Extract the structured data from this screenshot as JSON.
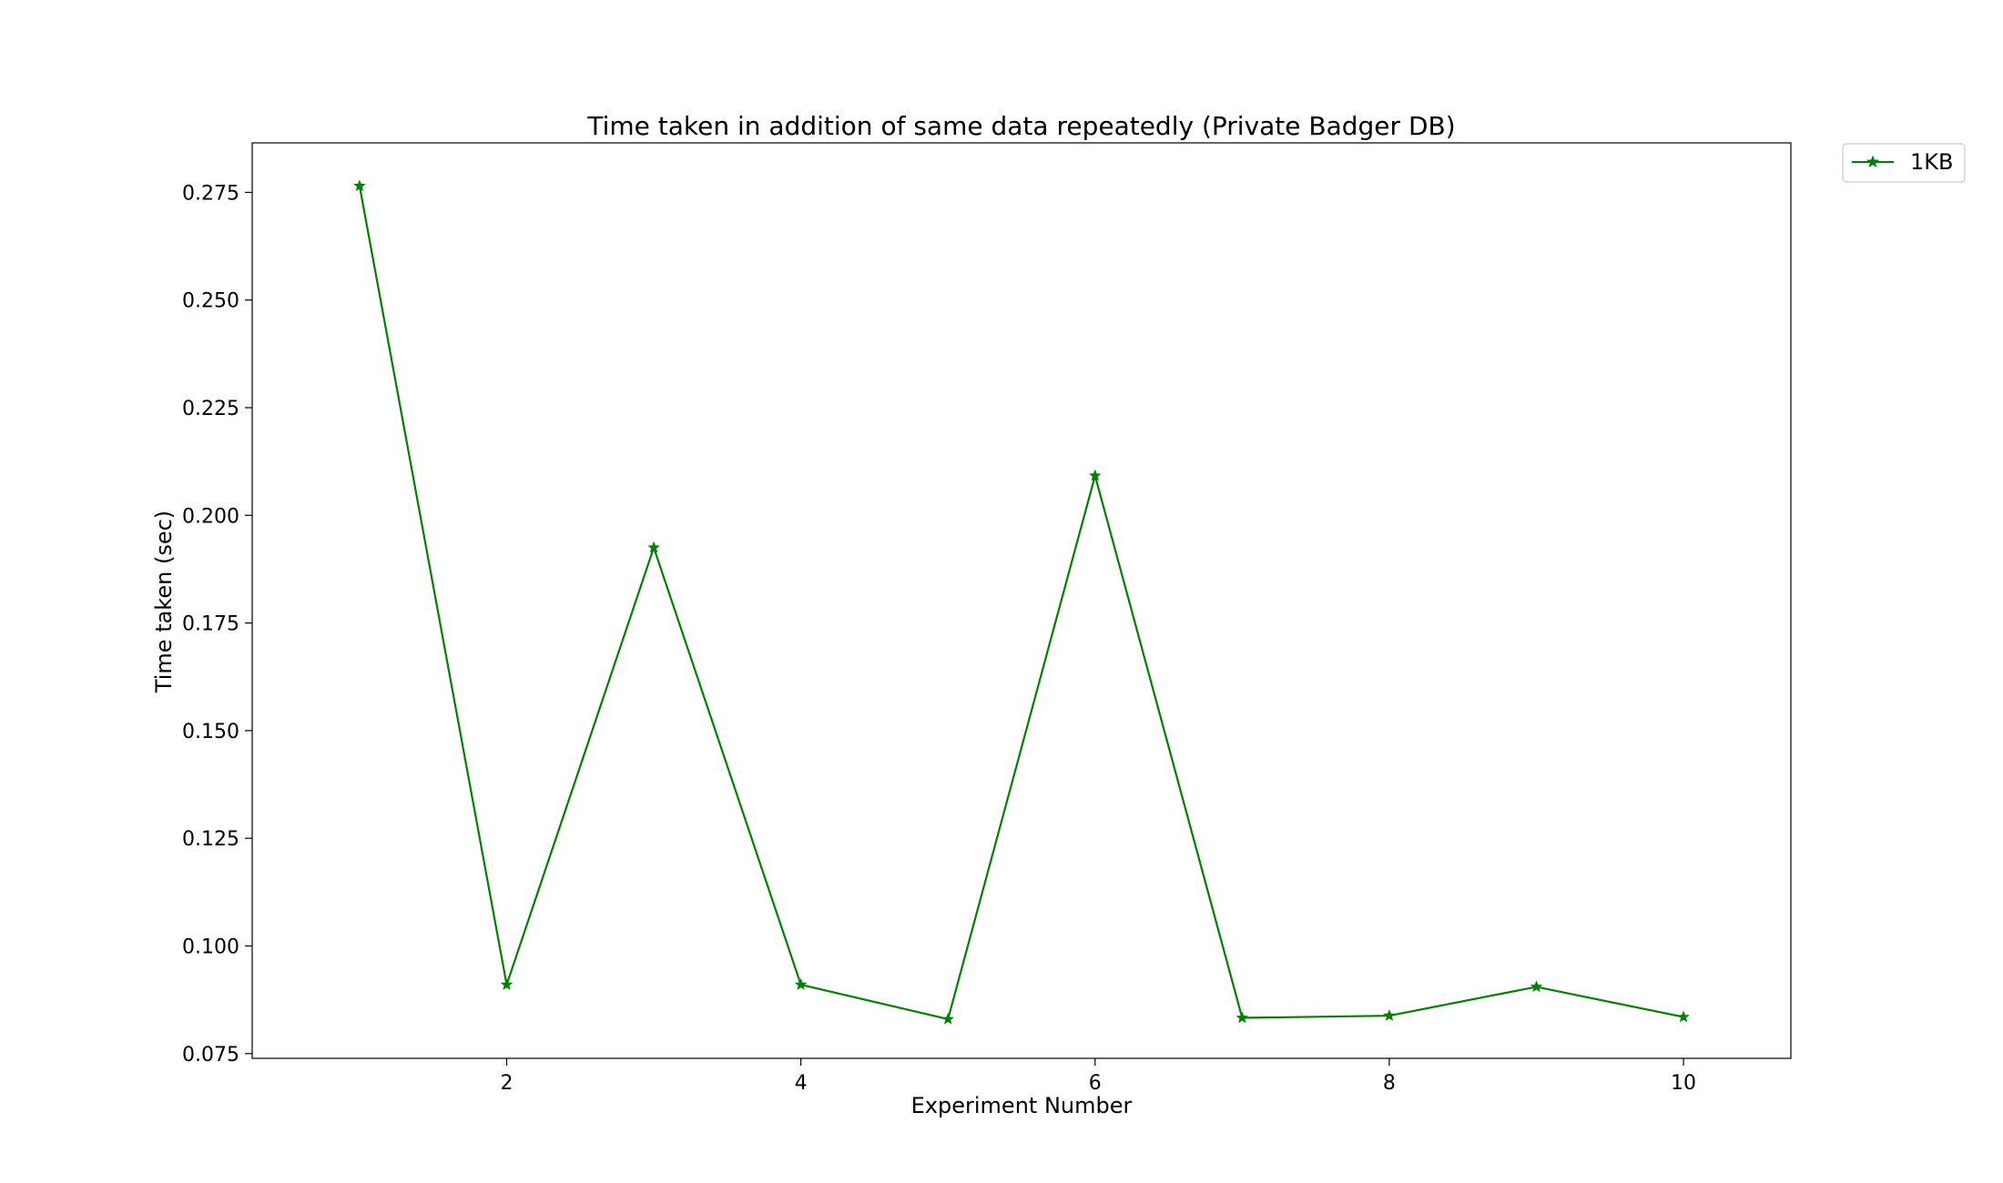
{
  "chart_data": {
    "type": "line",
    "title": "Time taken in addition of same data repeatedly (Private Badger DB)",
    "xlabel": "Experiment Number",
    "ylabel": "Time taken (sec)",
    "xlim": [
      0.27,
      10.73
    ],
    "ylim": [
      0.0739,
      0.2865
    ],
    "x_ticks": [
      2,
      4,
      6,
      8,
      10
    ],
    "x_tick_labels": [
      "2",
      "4",
      "6",
      "8",
      "10"
    ],
    "y_ticks": [
      0.075,
      0.1,
      0.125,
      0.15,
      0.175,
      0.2,
      0.225,
      0.25,
      0.275
    ],
    "y_tick_labels": [
      "0.075",
      "0.100",
      "0.125",
      "0.150",
      "0.175",
      "0.200",
      "0.225",
      "0.250",
      "0.275"
    ],
    "grid": false,
    "legend_position": "outside-top-right",
    "x": [
      1,
      2,
      3,
      4,
      5,
      6,
      7,
      8,
      9,
      10
    ],
    "series": [
      {
        "name": "1KB",
        "color": "#008000",
        "marker": "star",
        "values": [
          0.2765,
          0.091,
          0.1925,
          0.091,
          0.083,
          0.2092,
          0.0833,
          0.0838,
          0.0905,
          0.0835
        ]
      }
    ]
  }
}
